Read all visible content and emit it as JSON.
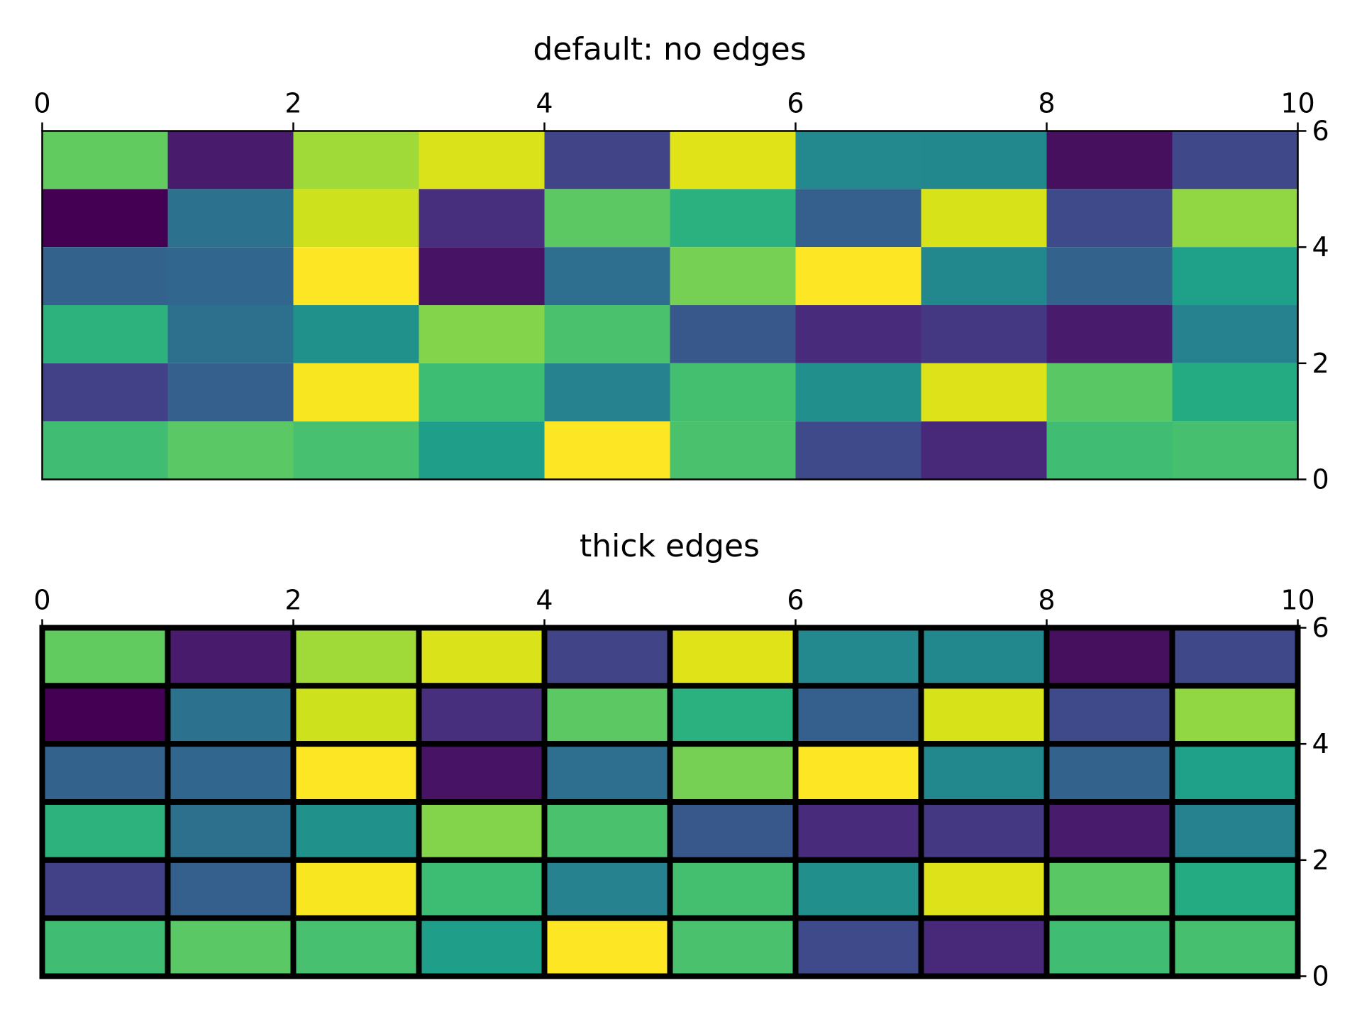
{
  "chart_data": [
    {
      "type": "heatmap",
      "title": "default: no edges",
      "colormap": "viridis",
      "edges": "none",
      "xlim": [
        0,
        10
      ],
      "ylim": [
        0,
        6
      ],
      "x_axis_position": "top",
      "y_axis_position": "right",
      "xticks": [
        "0",
        "2",
        "4",
        "6",
        "8",
        "10"
      ],
      "yticks": [
        "0",
        "2",
        "4",
        "6"
      ],
      "rows_top_to_bottom": [
        [
          "#62cb5f",
          "#481b6d",
          "#a0da39",
          "#dae319",
          "#414487",
          "#dfe318",
          "#23898e",
          "#23888e",
          "#46105e",
          "#3f4889"
        ],
        [
          "#440154",
          "#2c718e",
          "#cde11d",
          "#472f7d",
          "#5cc863",
          "#2bb07f",
          "#355f8d",
          "#d8e219",
          "#3e4a89",
          "#90d743"
        ],
        [
          "#33638d",
          "#31668e",
          "#fde725",
          "#471365",
          "#2e6e8e",
          "#75d054",
          "#fde725",
          "#23888e",
          "#33638d",
          "#1fa088"
        ],
        [
          "#2db27d",
          "#2d708e",
          "#21918c",
          "#84d44b",
          "#4ac16d",
          "#38588c",
          "#482c7b",
          "#453882",
          "#481b6d",
          "#26828e"
        ],
        [
          "#424086",
          "#355f8d",
          "#f8e621",
          "#3dbc74",
          "#26828e",
          "#44bf70",
          "#21908d",
          "#dde318",
          "#59c864",
          "#25ab82"
        ],
        [
          "#40bd72",
          "#5ac864",
          "#47c06f",
          "#1f9e89",
          "#fde725",
          "#4ac16d",
          "#3e4a89",
          "#482878",
          "#40bd72",
          "#46c06f"
        ]
      ]
    },
    {
      "type": "heatmap",
      "title": "thick edges",
      "colormap": "viridis",
      "edges": "thick black",
      "edge_color": "#000000",
      "xlim": [
        0,
        10
      ],
      "ylim": [
        0,
        6
      ],
      "x_axis_position": "top",
      "y_axis_position": "right",
      "xticks": [
        "0",
        "2",
        "4",
        "6",
        "8",
        "10"
      ],
      "yticks": [
        "0",
        "2",
        "4",
        "6"
      ],
      "rows_top_to_bottom": [
        [
          "#62cb5f",
          "#481b6d",
          "#a0da39",
          "#dae319",
          "#414487",
          "#dfe318",
          "#23898e",
          "#23888e",
          "#46105e",
          "#3f4889"
        ],
        [
          "#440154",
          "#2c718e",
          "#cde11d",
          "#472f7d",
          "#5cc863",
          "#2bb07f",
          "#355f8d",
          "#d8e219",
          "#3e4a89",
          "#90d743"
        ],
        [
          "#33638d",
          "#31668e",
          "#fde725",
          "#471365",
          "#2e6e8e",
          "#75d054",
          "#fde725",
          "#23888e",
          "#33638d",
          "#1fa088"
        ],
        [
          "#2db27d",
          "#2d708e",
          "#21918c",
          "#84d44b",
          "#4ac16d",
          "#38588c",
          "#482c7b",
          "#453882",
          "#481b6d",
          "#26828e"
        ],
        [
          "#424086",
          "#355f8d",
          "#f8e621",
          "#3dbc74",
          "#26828e",
          "#44bf70",
          "#21908d",
          "#dde318",
          "#59c864",
          "#25ab82"
        ],
        [
          "#40bd72",
          "#5ac864",
          "#47c06f",
          "#1f9e89",
          "#fde725",
          "#4ac16d",
          "#3e4a89",
          "#482878",
          "#40bd72",
          "#46c06f"
        ]
      ]
    }
  ]
}
